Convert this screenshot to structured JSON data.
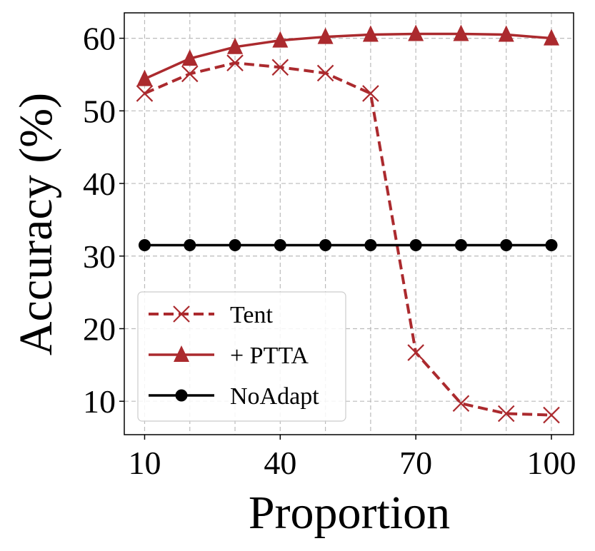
{
  "chart_data": {
    "type": "line",
    "xlabel": "Proportion",
    "ylabel": "Accuracy (%)",
    "x": [
      10,
      20,
      30,
      40,
      50,
      60,
      70,
      80,
      90,
      100
    ],
    "xticks": [
      10,
      40,
      70,
      100
    ],
    "yticks": [
      10,
      20,
      30,
      40,
      50,
      60
    ],
    "xlim": [
      5.5,
      104.9
    ],
    "ylim": [
      5.4,
      63.5
    ],
    "grid": true,
    "legend_position": "lower-left",
    "series": [
      {
        "name": "Tent",
        "color": "#ab2a2e",
        "style": "dashed",
        "marker": "x",
        "values": [
          52.4,
          55.1,
          56.6,
          56.0,
          55.2,
          52.4,
          16.7,
          9.7,
          8.3,
          8.1
        ]
      },
      {
        "name": "+ PTTA",
        "color": "#ab2a2e",
        "style": "solid",
        "marker": "triangle",
        "values": [
          54.4,
          57.2,
          58.8,
          59.7,
          60.2,
          60.5,
          60.6,
          60.6,
          60.5,
          60.0
        ]
      },
      {
        "name": "NoAdapt",
        "color": "#000000",
        "style": "solid",
        "marker": "circle",
        "values": [
          31.5,
          31.5,
          31.5,
          31.5,
          31.5,
          31.5,
          31.5,
          31.5,
          31.5,
          31.5
        ]
      }
    ]
  }
}
